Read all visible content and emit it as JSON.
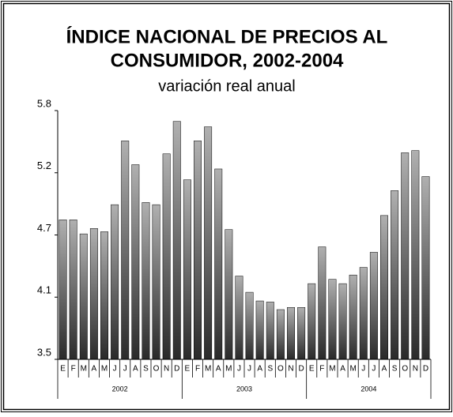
{
  "chart_data": {
    "type": "bar",
    "title": [
      "ÍNDICE NACIONAL DE PRECIOS AL",
      "CONSUMIDOR, 2002-2004"
    ],
    "subtitle": "variación real anual",
    "categories": [
      "E",
      "F",
      "M",
      "A",
      "M",
      "J",
      "J",
      "A",
      "S",
      "O",
      "N",
      "D",
      "E",
      "F",
      "M",
      "A",
      "M",
      "J",
      "J",
      "A",
      "S",
      "O",
      "N",
      "D",
      "E",
      "F",
      "M",
      "A",
      "M",
      "J",
      "J",
      "A",
      "S",
      "O",
      "N",
      "D"
    ],
    "x_groups": [
      "2002",
      "2003",
      "2004"
    ],
    "values": [
      4.79,
      4.79,
      4.66,
      4.71,
      4.68,
      4.93,
      5.52,
      5.3,
      4.95,
      4.93,
      5.4,
      5.7,
      5.16,
      5.52,
      5.65,
      5.26,
      4.7,
      4.27,
      4.12,
      4.04,
      4.03,
      3.96,
      3.98,
      3.98,
      4.2,
      4.54,
      4.24,
      4.2,
      4.28,
      4.35,
      4.49,
      4.83,
      5.06,
      5.41,
      5.43,
      5.19
    ],
    "color": "#b0b0b0",
    "ylim": [
      3.5,
      5.8
    ],
    "yticks": [
      3.5,
      {
        "value": 4.075,
        "label": "4.1"
      },
      {
        "value": 4.65,
        "label": "4.7"
      },
      {
        "value": 5.225,
        "label": "5.2"
      },
      5.8
    ],
    "grid": false
  }
}
